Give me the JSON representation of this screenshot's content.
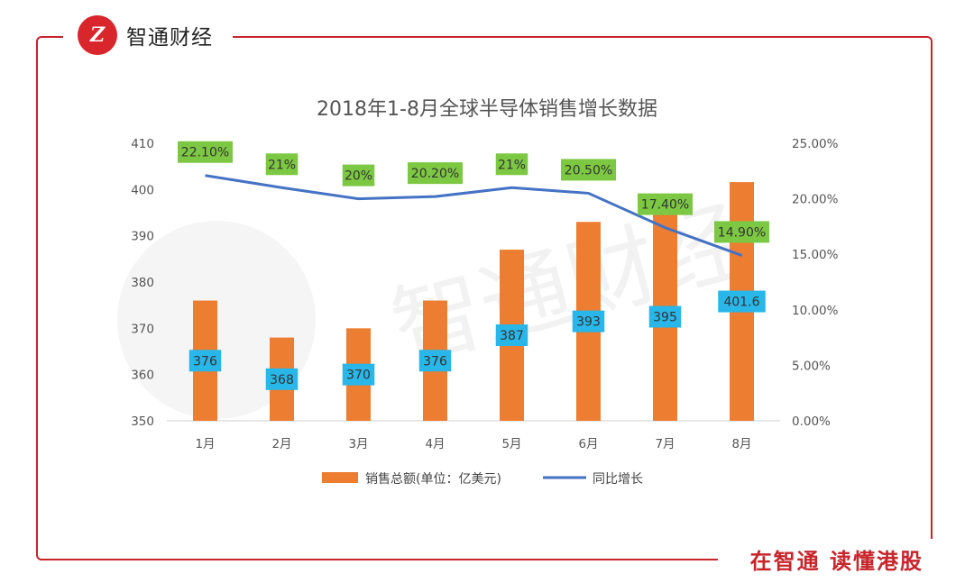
{
  "brand": {
    "name": "智通财经",
    "logo_text": "Z"
  },
  "slogan": "在智通  读懂港股",
  "watermark": "智通财经",
  "chart_data": {
    "type": "bar+line",
    "title": "2018年1-8月全球半导体销售增长数据",
    "categories": [
      "1月",
      "2月",
      "3月",
      "4月",
      "5月",
      "6月",
      "7月",
      "8月"
    ],
    "series": [
      {
        "name": "销售总额(单位：亿美元)",
        "type": "bar",
        "axis": "left",
        "values": [
          376,
          368,
          370,
          376,
          387,
          393,
          395,
          401.6
        ],
        "labels": [
          "376",
          "368",
          "370",
          "376",
          "387",
          "393",
          "395",
          "401.6"
        ],
        "color": "#ed7d31"
      },
      {
        "name": "同比增长",
        "type": "line",
        "axis": "right",
        "values": [
          22.1,
          21,
          20,
          20.2,
          21,
          20.5,
          17.4,
          14.9
        ],
        "labels": [
          "22.10%",
          "21%",
          "20%",
          "20.20%",
          "21%",
          "20.50%",
          "17.40%",
          "14.90%"
        ],
        "color": "#4472c4"
      }
    ],
    "y_left": {
      "min": 350,
      "max": 410,
      "ticks": [
        "410",
        "400",
        "390",
        "380",
        "370",
        "360",
        "350"
      ]
    },
    "y_right": {
      "min": 0,
      "max": 25,
      "ticks": [
        "25.00%",
        "20.00%",
        "15.00%",
        "10.00%",
        "5.00%",
        "0.00%"
      ]
    },
    "bar_label_color": "#29b6e8",
    "line_label_color": "#7dc843"
  }
}
